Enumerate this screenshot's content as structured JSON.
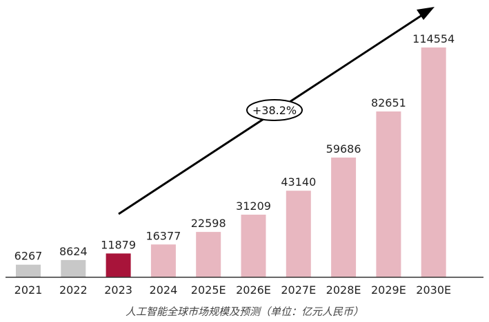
{
  "chart_data": {
    "type": "bar",
    "title": "",
    "caption": "人工智能全球市场规模及预测（单位：亿元人民币）",
    "categories": [
      "2021",
      "2022",
      "2023",
      "2024",
      "2025E",
      "2026E",
      "2027E",
      "2028E",
      "2029E",
      "2030E"
    ],
    "values": [
      6267,
      8624,
      11879,
      16377,
      22598,
      31209,
      43140,
      59686,
      82651,
      114554
    ],
    "data_labels": [
      "6267",
      "8624",
      "11879",
      "16377",
      "22598",
      "31209",
      "43140",
      "59686",
      "82651",
      "114554"
    ],
    "ylim": [
      0,
      114554
    ],
    "grid": false,
    "legend": "none",
    "bar_colors": [
      "#c8c8c8",
      "#c8c8c8",
      "#a8143a",
      "#e8b7c0",
      "#e8b7c0",
      "#e8b7c0",
      "#e8b7c0",
      "#e8b7c0",
      "#e8b7c0",
      "#e8b7c0"
    ],
    "annotation": {
      "text": "+38.2%",
      "type": "trend-arrow"
    }
  }
}
